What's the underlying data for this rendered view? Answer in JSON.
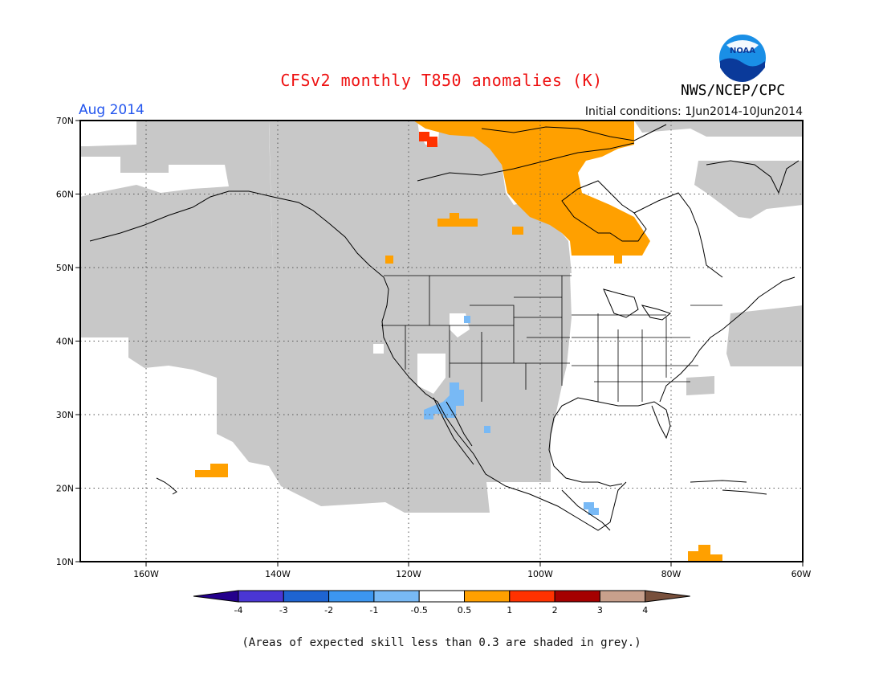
{
  "header": {
    "title": "CFSv2 monthly T850 anomalies (K)",
    "agency": "NWS/NCEP/CPC",
    "month": "Aug 2014",
    "initial_conditions": "Initial conditions: 1Jun2014-10Jun2014",
    "logo_text": "NOAA"
  },
  "map": {
    "lat_labels": [
      "70N",
      "60N",
      "50N",
      "40N",
      "30N",
      "20N",
      "10N"
    ],
    "lon_labels": [
      "160W",
      "140W",
      "120W",
      "100W",
      "80W",
      "60W"
    ],
    "extent": {
      "lon_min": -172,
      "lon_max": -60,
      "lat_min": 10,
      "lat_max": 70
    },
    "low_skill_color": "#c8c8c8"
  },
  "colorbar": {
    "ticks": [
      "-4",
      "-3",
      "-2",
      "-1",
      "-0.5",
      "0.5",
      "1",
      "2",
      "3",
      "4"
    ],
    "colors": [
      "#24008c",
      "#4a36d4",
      "#1e64d2",
      "#3c96f0",
      "#78b9f5",
      "#ffffff",
      "#ffa000",
      "#ff3200",
      "#a50000",
      "#c8a08c",
      "#78503c"
    ]
  },
  "footnote": "(Areas of expected skill less than 0.3 are shaded in grey.)"
}
